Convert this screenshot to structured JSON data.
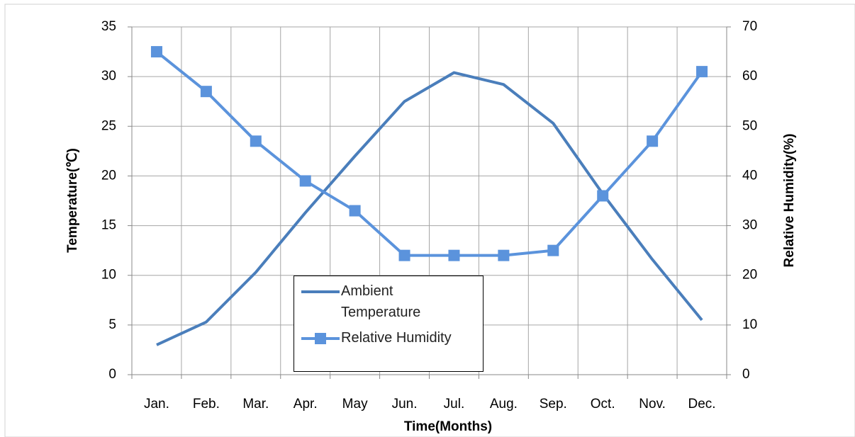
{
  "chart_data": {
    "type": "line",
    "x_label": "Time(Months)",
    "y_label": "Temperature(℃)",
    "y2_label": "Relative Humidity(%)",
    "categories": [
      "Jan.",
      "Feb.",
      "Mar.",
      "Apr.",
      "May",
      "Jun.",
      "Jul.",
      "Aug.",
      "Sep.",
      "Oct.",
      "Nov.",
      "Dec."
    ],
    "series": [
      {
        "name": "Ambient Temperature",
        "color": "#4a7ebb",
        "marker": "none",
        "axis": "y",
        "values": [
          3,
          5.3,
          10.3,
          16.3,
          22,
          27.5,
          30.4,
          29.2,
          25.3,
          18.2,
          11.6,
          5.5
        ]
      },
      {
        "name": "Relative Humidity",
        "color": "#5b93dc",
        "marker": "square",
        "axis": "y2",
        "values": [
          65,
          57,
          47,
          39,
          33,
          24,
          24,
          24,
          25,
          36,
          47,
          61
        ]
      }
    ],
    "ylim": [
      0,
      35
    ],
    "yticks": [
      0,
      5,
      10,
      15,
      20,
      25,
      30,
      35
    ],
    "y2lim": [
      0,
      70
    ],
    "y2ticks": [
      0,
      10,
      20,
      30,
      40,
      50,
      60,
      70
    ],
    "grid": true,
    "legend": "lower center"
  }
}
